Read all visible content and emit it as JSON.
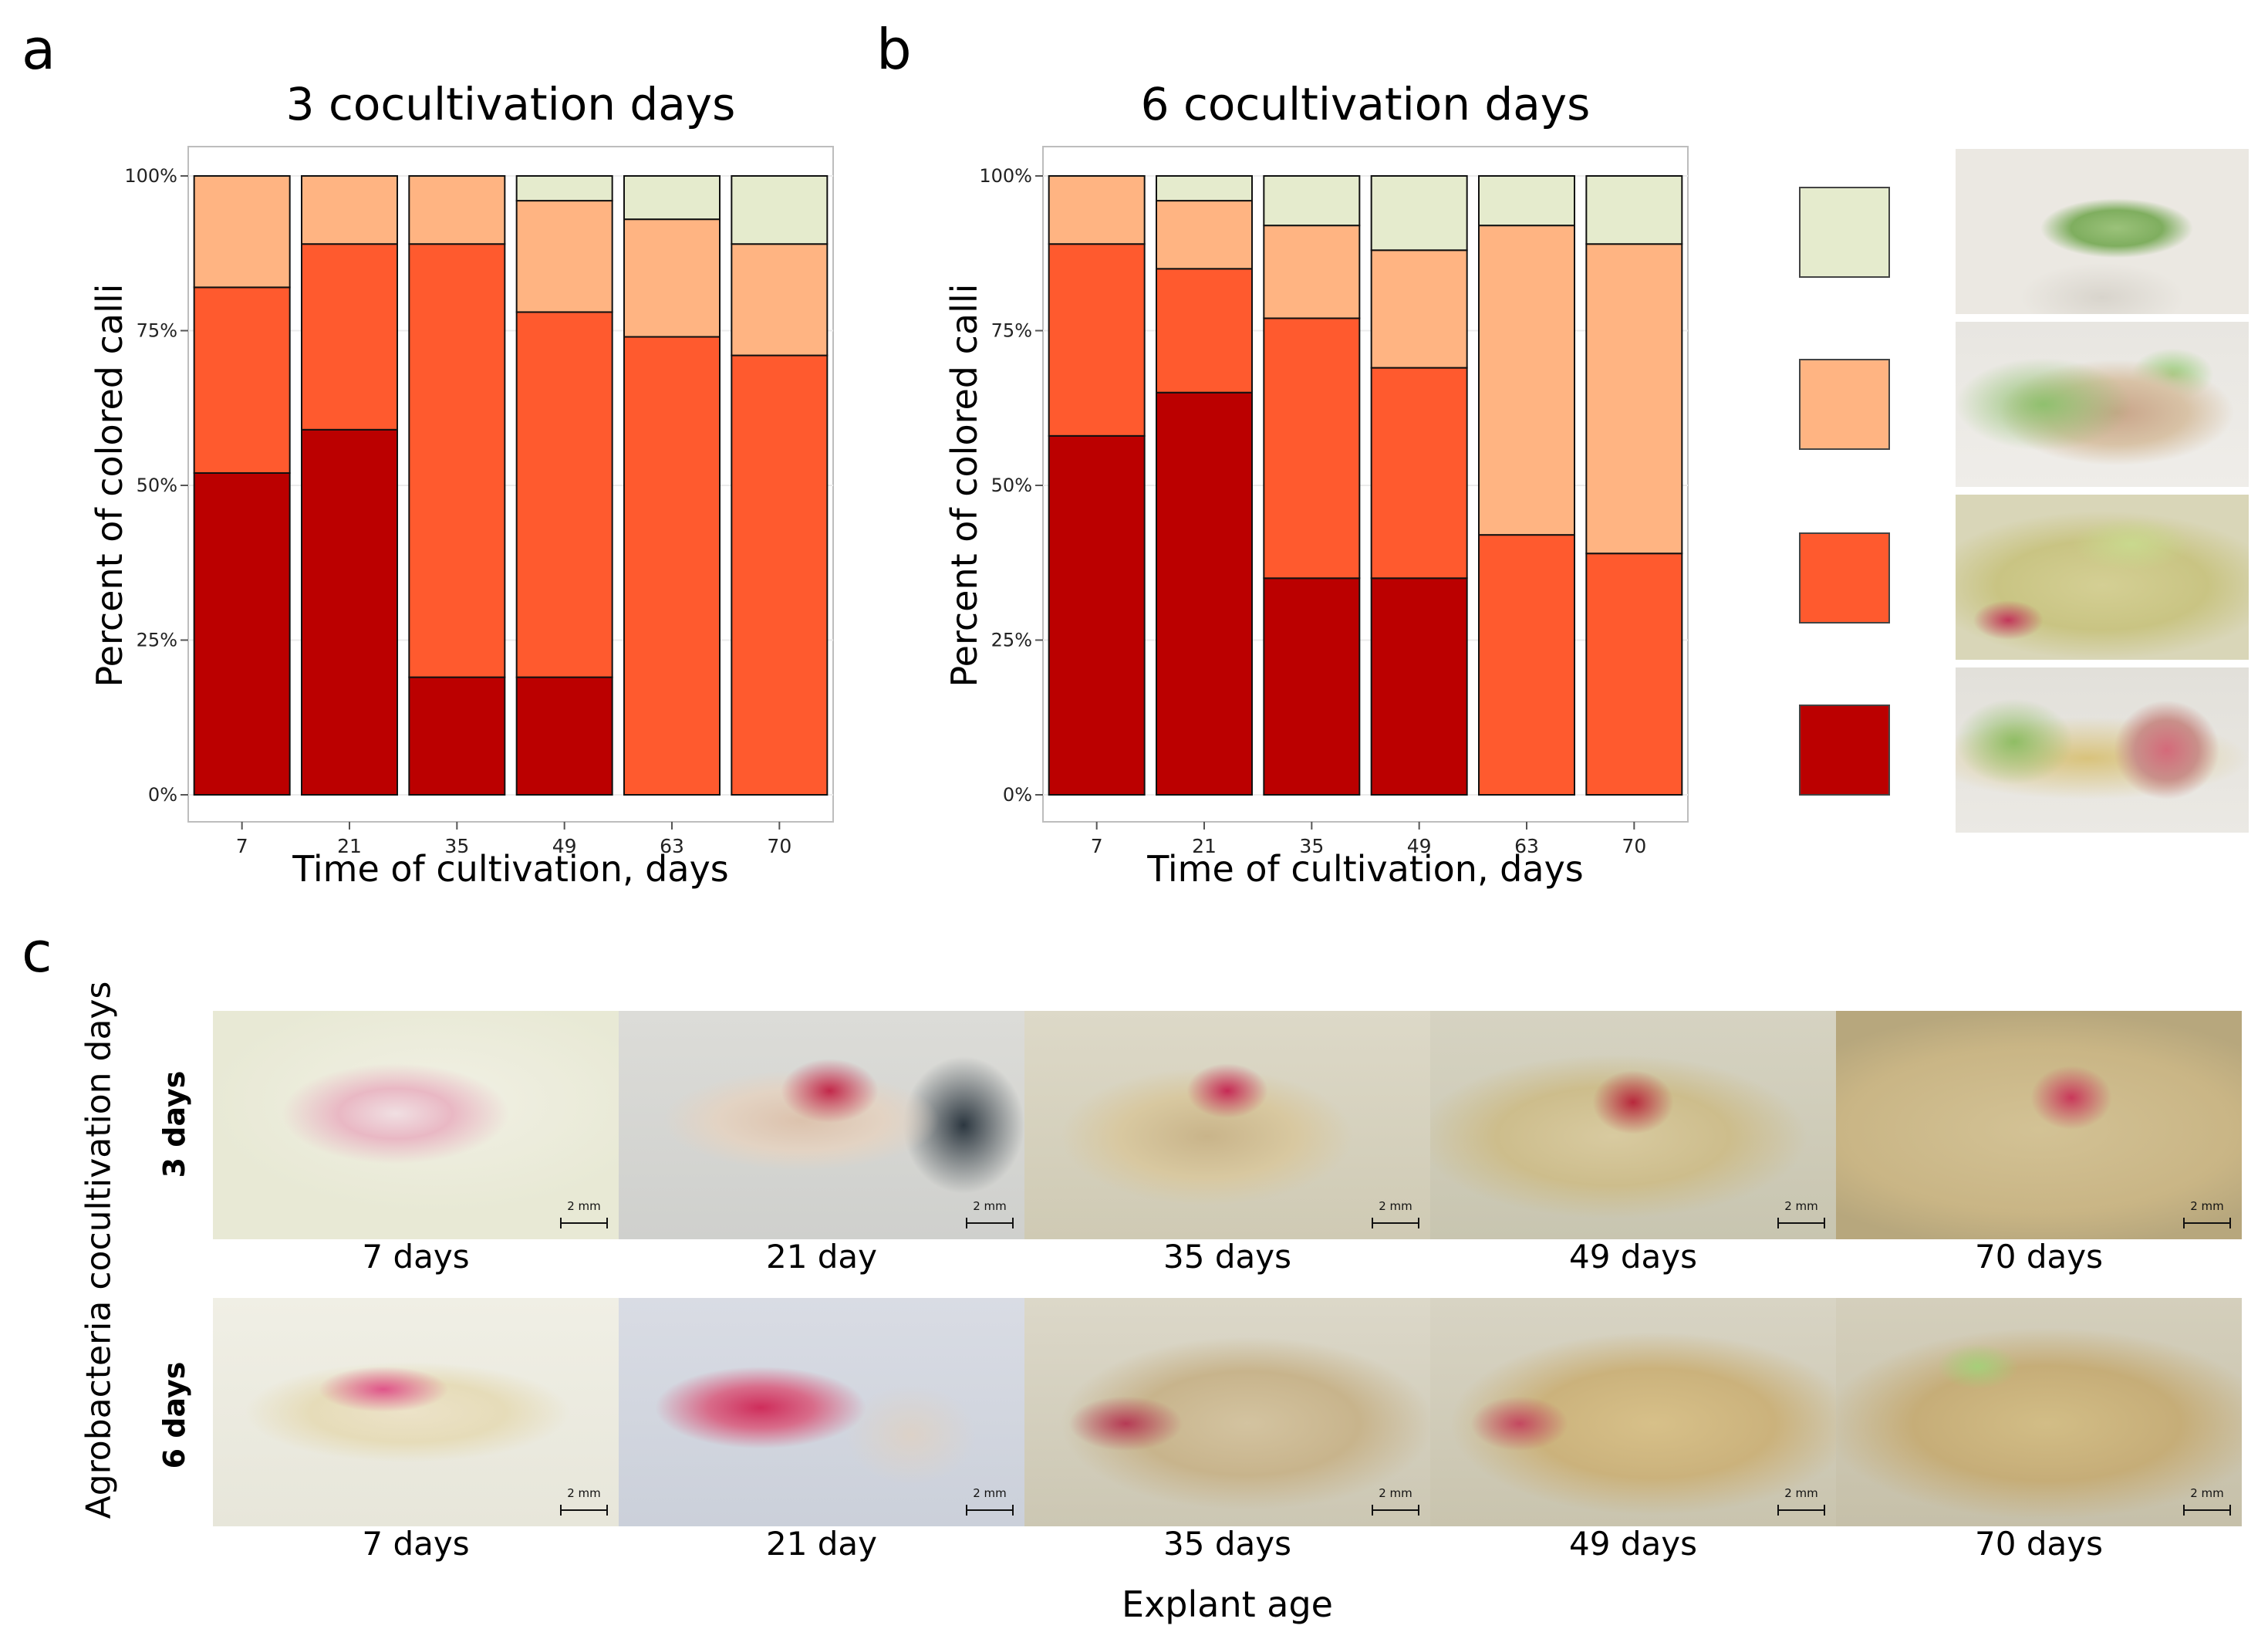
{
  "panels": {
    "a": "a",
    "b": "b",
    "c": "c"
  },
  "colors": {
    "light_green": "#E5EBCD",
    "light_orange": "#FFB482",
    "orange_red": "#FF5A2E",
    "dark_red": "#BB0000"
  },
  "chart_data": [
    {
      "type": "bar",
      "stacked": true,
      "title": "3 cocultivation days",
      "xlabel": "Time of cultivation, days",
      "ylabel": "Percent of colored calli",
      "ylim": [
        0,
        100
      ],
      "yticks": [
        "0%",
        "25%",
        "50%",
        "75%",
        "100%"
      ],
      "categories": [
        "7",
        "21",
        "35",
        "49",
        "63",
        "70"
      ],
      "series": [
        {
          "name": "dark red",
          "color": "#BB0000",
          "values": [
            52,
            59,
            19,
            19,
            0,
            0
          ]
        },
        {
          "name": "orange red",
          "color": "#FF5A2E",
          "values": [
            30,
            30,
            70,
            59,
            74,
            71
          ]
        },
        {
          "name": "light orange",
          "color": "#FFB482",
          "values": [
            18,
            11,
            11,
            18,
            19,
            18
          ]
        },
        {
          "name": "light green",
          "color": "#E5EBCD",
          "values": [
            0,
            0,
            0,
            4,
            7,
            11
          ]
        }
      ]
    },
    {
      "type": "bar",
      "stacked": true,
      "title": "6 cocultivation days",
      "xlabel": "Time of cultivation, days",
      "ylabel": "Percent of colored calli",
      "ylim": [
        0,
        100
      ],
      "yticks": [
        "0%",
        "25%",
        "50%",
        "75%",
        "100%"
      ],
      "categories": [
        "7",
        "21",
        "35",
        "49",
        "63",
        "70"
      ],
      "series": [
        {
          "name": "dark red",
          "color": "#BB0000",
          "values": [
            58,
            65,
            35,
            35,
            0,
            0
          ]
        },
        {
          "name": "orange red",
          "color": "#FF5A2E",
          "values": [
            31,
            20,
            42,
            34,
            42,
            39
          ]
        },
        {
          "name": "light orange",
          "color": "#FFB482",
          "values": [
            11,
            11,
            15,
            19,
            50,
            50
          ]
        },
        {
          "name": "light green",
          "color": "#E5EBCD",
          "values": [
            0,
            4,
            8,
            12,
            8,
            11
          ]
        }
      ]
    }
  ],
  "legend": {
    "swatches": [
      "#E5EBCD",
      "#FFB482",
      "#FF5A2E",
      "#BB0000"
    ],
    "photos": [
      "green-callus-photo",
      "light-orange-callus-photo",
      "orange-red-callus-photo",
      "dark-red-callus-photo"
    ]
  },
  "panel_c": {
    "ylabel": "Agrobacteria cocultivation days",
    "xlabel": "Explant age",
    "rows": [
      {
        "label": "3 days",
        "captions": [
          "7 days",
          "21 day",
          "35 days",
          "49 days",
          "70 days"
        ]
      },
      {
        "label": "6 days",
        "captions": [
          "7 days",
          "21 day",
          "35 days",
          "49 days",
          "70 days"
        ]
      }
    ],
    "scale_label": "2 mm"
  }
}
